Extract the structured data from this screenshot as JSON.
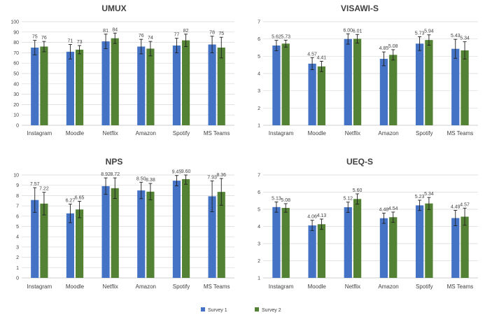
{
  "chart_data": [
    {
      "type": "bar",
      "title": "UMUX",
      "categories": [
        "Instagram",
        "Moodle",
        "Netflix",
        "Amazon",
        "Spotify",
        "MS Teams"
      ],
      "series": [
        {
          "name": "Survey 1",
          "values": [
            75,
            71,
            81,
            76,
            77,
            78
          ],
          "errors": [
            7,
            7,
            7,
            7,
            7,
            8
          ]
        },
        {
          "name": "Survey 2",
          "values": [
            76,
            73,
            84,
            74,
            82,
            75
          ],
          "errors": [
            5,
            4,
            5,
            7,
            6,
            10
          ]
        }
      ],
      "labels": [
        [
          "75",
          "71",
          "81",
          "76",
          "77",
          "78"
        ],
        [
          "76",
          "73",
          "84",
          "74",
          "82",
          "75"
        ]
      ],
      "ylim": [
        0,
        100
      ],
      "yticks": [
        0,
        10,
        20,
        30,
        40,
        50,
        60,
        70,
        80,
        90,
        100
      ]
    },
    {
      "type": "bar",
      "title": "VISAWI-S",
      "categories": [
        "Instagram",
        "Moodle",
        "Netflix",
        "Amazon",
        "Spotify",
        "MS Teams"
      ],
      "series": [
        {
          "name": "Survey 1",
          "values": [
            5.62,
            4.57,
            6.0,
            4.85,
            5.73,
            5.43
          ],
          "errors": [
            0.3,
            0.35,
            0.3,
            0.4,
            0.4,
            0.55
          ]
        },
        {
          "name": "Survey 2",
          "values": [
            5.73,
            4.41,
            6.01,
            5.08,
            5.94,
            5.34
          ],
          "errors": [
            0.2,
            0.3,
            0.25,
            0.3,
            0.3,
            0.5
          ]
        }
      ],
      "labels": [
        [
          "5.62",
          "4.57",
          "6.00",
          "4.85",
          "5.73",
          "5.43"
        ],
        [
          "5.73",
          "4.41",
          "6.01",
          "5.08",
          "5.94",
          "5.34"
        ]
      ],
      "ylim": [
        1,
        7
      ],
      "yticks": [
        1,
        2,
        3,
        4,
        5,
        6,
        7
      ]
    },
    {
      "type": "bar",
      "title": "NPS",
      "categories": [
        "Instagram",
        "Moodle",
        "Netflix",
        "Amazon",
        "Spotify",
        "MS Teams"
      ],
      "series": [
        {
          "name": "Survey 1",
          "values": [
            7.57,
            6.27,
            8.92,
            8.5,
            9.45,
            7.93
          ],
          "errors": [
            1.2,
            0.9,
            0.8,
            0.8,
            0.5,
            1.5
          ]
        },
        {
          "name": "Survey 2",
          "values": [
            7.22,
            6.65,
            8.72,
            8.38,
            9.6,
            8.36
          ],
          "errors": [
            1.1,
            0.8,
            1.0,
            0.8,
            0.5,
            1.3
          ]
        }
      ],
      "labels": [
        [
          "7.57",
          "6.27",
          "8.92",
          "8.50",
          "9.45",
          "7.93"
        ],
        [
          "7.22",
          "6.65",
          "8.72",
          "8.38",
          "9.60",
          "8.36"
        ]
      ],
      "ylim": [
        0,
        10
      ],
      "yticks": [
        0,
        1,
        2,
        3,
        4,
        5,
        6,
        7,
        8,
        9,
        10
      ]
    },
    {
      "type": "bar",
      "title": "UEQ-S",
      "categories": [
        "Instagram",
        "Moodle",
        "Netflix",
        "Amazon",
        "Spotify",
        "MS Teams"
      ],
      "series": [
        {
          "name": "Survey 1",
          "values": [
            5.13,
            4.06,
            5.12,
            4.48,
            5.23,
            4.49
          ],
          "errors": [
            0.3,
            0.3,
            0.3,
            0.3,
            0.3,
            0.45
          ]
        },
        {
          "name": "Survey 2",
          "values": [
            5.08,
            4.13,
            5.6,
            4.54,
            5.34,
            4.57
          ],
          "errors": [
            0.25,
            0.3,
            0.3,
            0.3,
            0.35,
            0.5
          ]
        }
      ],
      "labels": [
        [
          "5.13",
          "4.06",
          "5.12",
          "4.48",
          "5.23",
          "4.49"
        ],
        [
          "5.08",
          "4.13",
          "5.60",
          "4.54",
          "5.34",
          "4.57"
        ]
      ],
      "ylim": [
        1,
        7
      ],
      "yticks": [
        1,
        2,
        3,
        4,
        5,
        6,
        7
      ]
    }
  ],
  "legend": {
    "placement": "bottom-center",
    "items": [
      {
        "label": "Survey 1",
        "color": "#4472c4"
      },
      {
        "label": "Survey 2",
        "color": "#548235"
      }
    ]
  },
  "colors": {
    "series": [
      "#4472c4",
      "#548235"
    ]
  },
  "grid": true
}
